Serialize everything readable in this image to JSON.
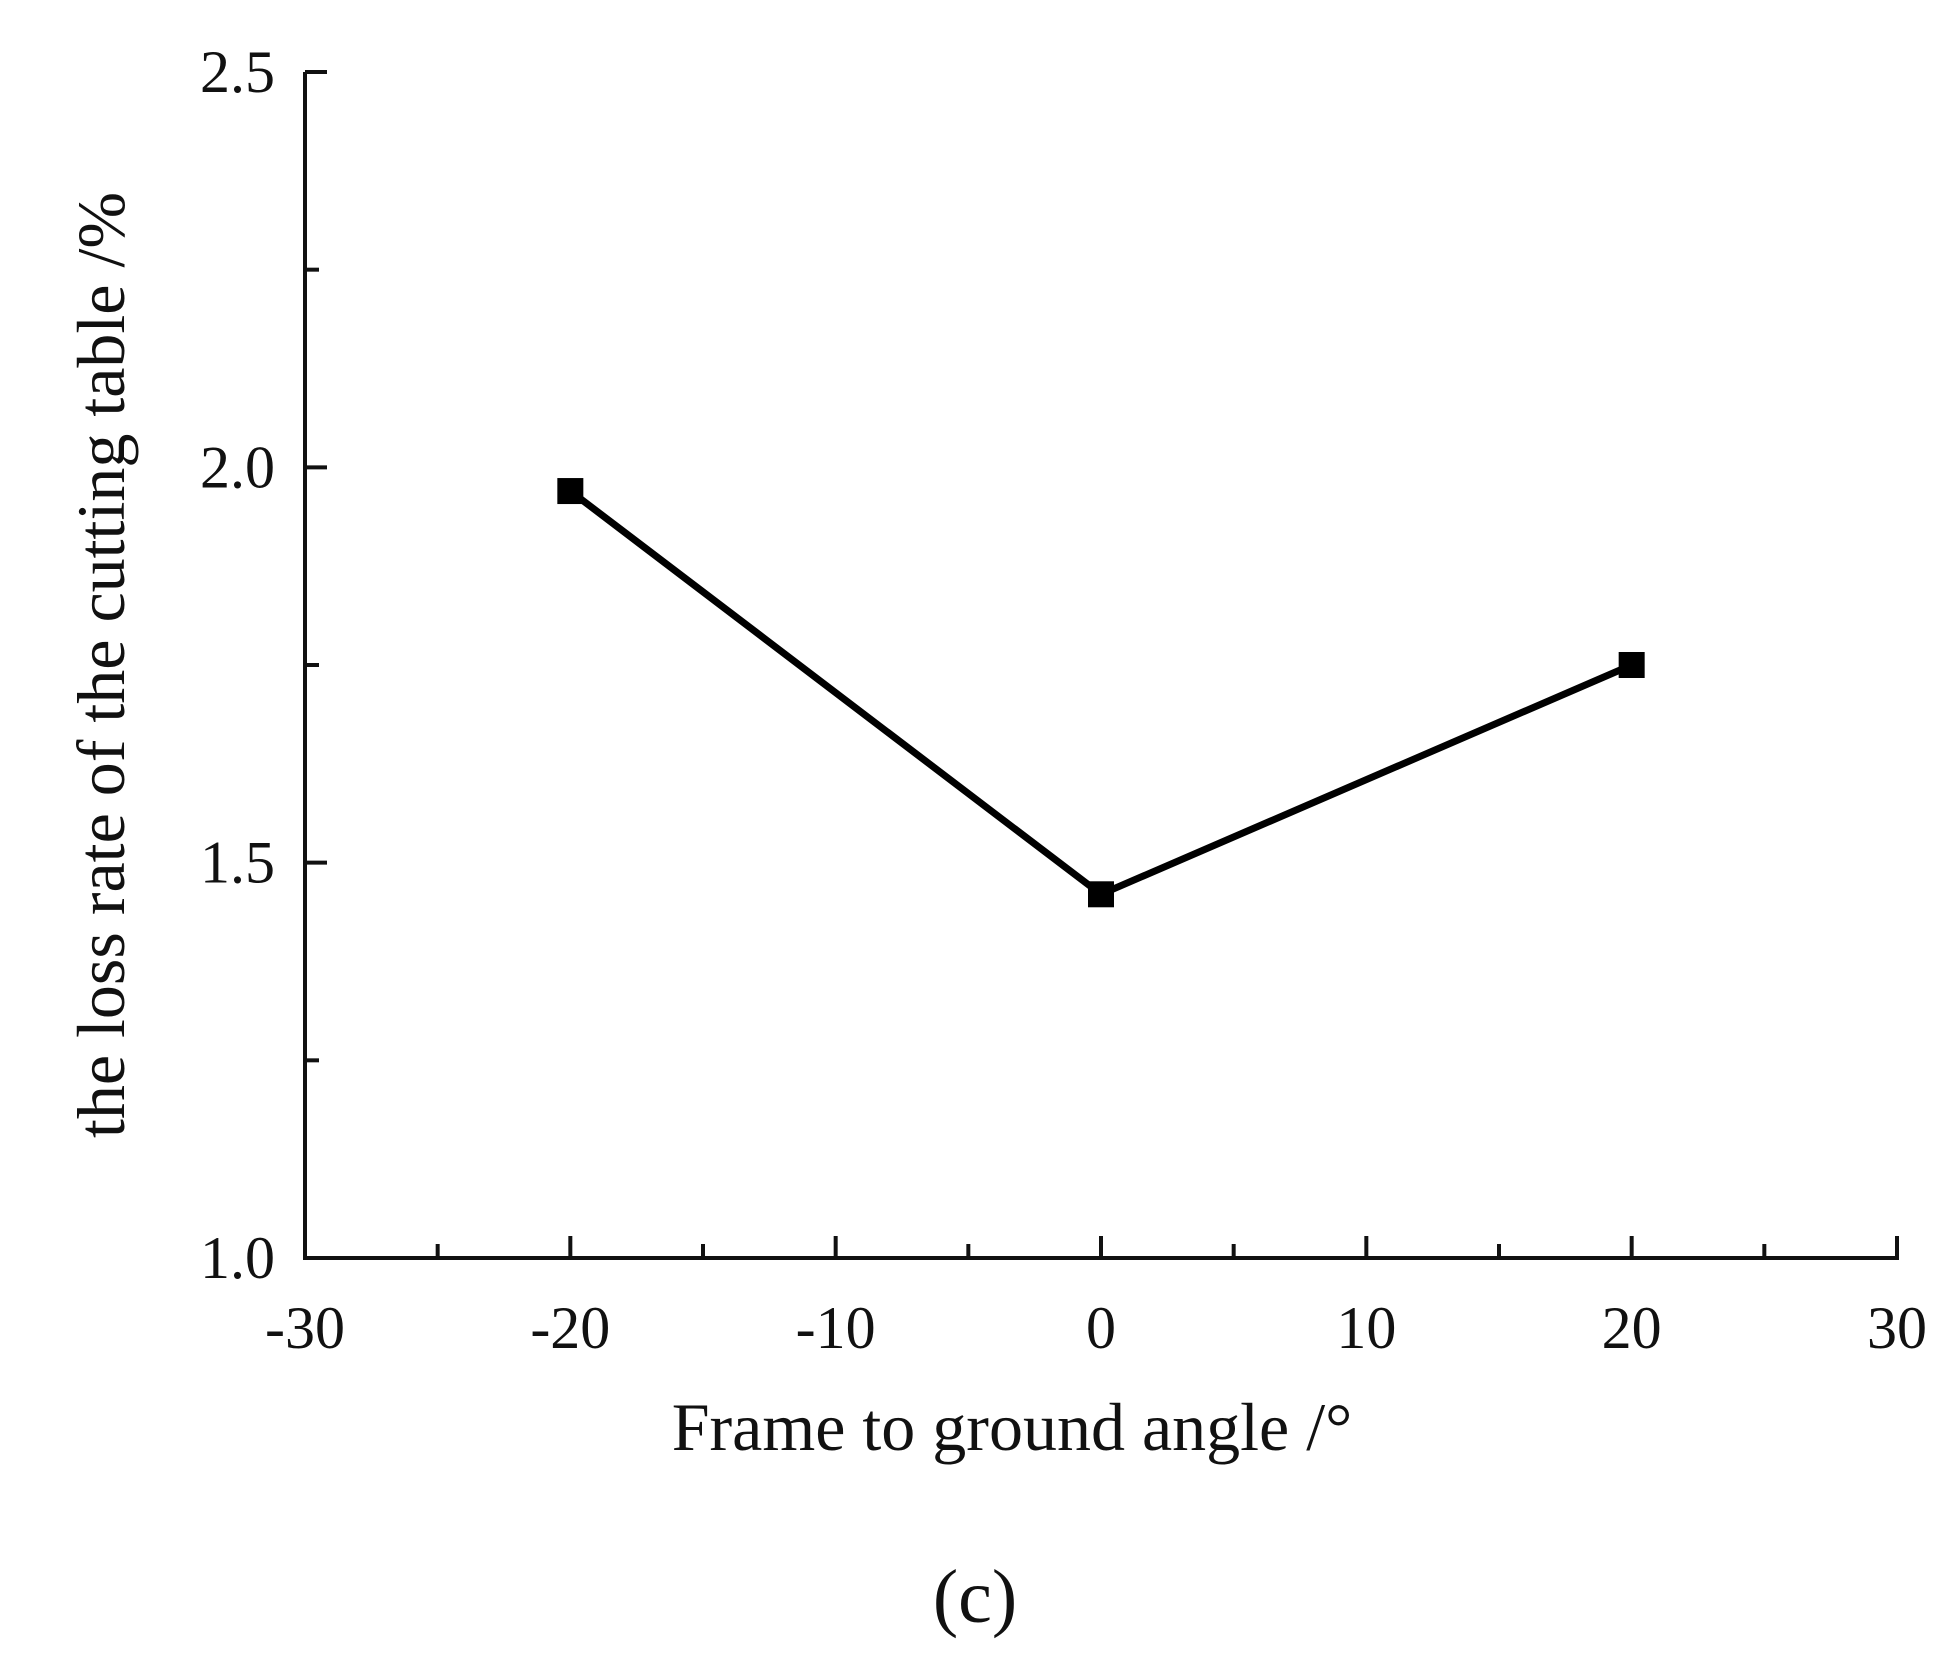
{
  "chart_data": {
    "type": "line",
    "title": "",
    "xlabel": "Frame to ground angle /°",
    "ylabel": "the loss rate of the cutting table  /%",
    "panel_label": "(c)",
    "xlim": [
      -30,
      30
    ],
    "ylim": [
      1.0,
      2.5
    ],
    "x_ticks": [
      "-30",
      "-20",
      "-10",
      "0",
      "10",
      "20",
      "30"
    ],
    "y_ticks": [
      "1.0",
      "1.5",
      "2.0",
      "2.5"
    ],
    "x_tick_values": [
      -30,
      -20,
      -10,
      0,
      10,
      20,
      30
    ],
    "y_tick_values": [
      1.0,
      1.5,
      2.0,
      2.5
    ],
    "x_minor_tick_values": [
      -25,
      -15,
      -5,
      5,
      15,
      25
    ],
    "y_minor_tick_values": [
      1.25,
      1.75,
      2.25
    ],
    "grid": false,
    "legend": "none",
    "marker": "square",
    "series": [
      {
        "x": [
          -20,
          0,
          20
        ],
        "values": [
          1.97,
          1.46,
          1.75
        ],
        "color": "#000000"
      }
    ]
  }
}
